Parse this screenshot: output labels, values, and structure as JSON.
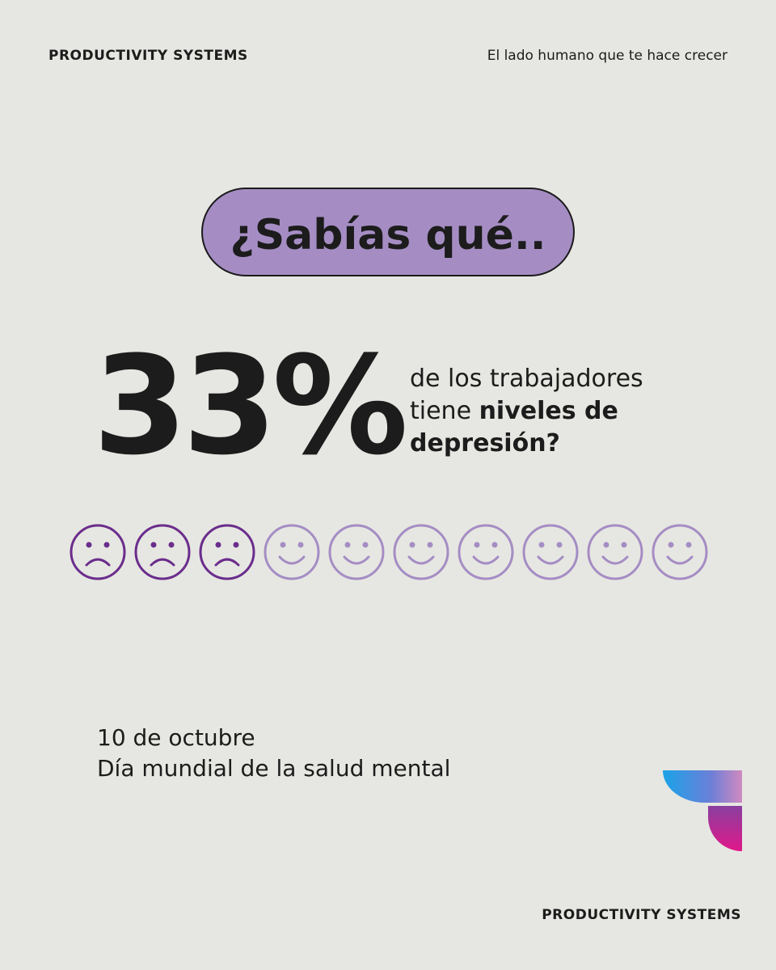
{
  "header": {
    "brand": "PRODUCTIVITY SYSTEMS",
    "tagline": "El lado humano que te hace crecer"
  },
  "pill": {
    "text": "¿Sabías qué.."
  },
  "stat": {
    "value": "33%",
    "lines": [
      "de los trabajadores",
      "tiene ",
      "niveles de",
      "depresión?"
    ]
  },
  "footer": {
    "date": "10 de octubre",
    "event": "Día mundial de la salud mental",
    "brand": "PRODUCTIVITY SYSTEMS"
  }
}
